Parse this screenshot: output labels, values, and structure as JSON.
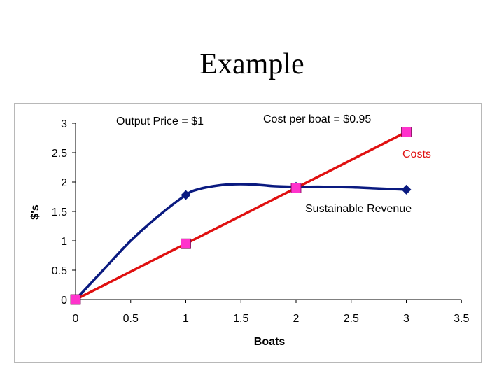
{
  "slide": {
    "title": "Example"
  },
  "chart_data": {
    "type": "line",
    "xlabel": "Boats",
    "ylabel": "$'s",
    "xlim": [
      0,
      3.5
    ],
    "ylim": [
      0,
      3
    ],
    "x_ticks": [
      "0",
      "0.5",
      "1",
      "1.5",
      "2",
      "2.5",
      "3",
      "3.5"
    ],
    "y_ticks": [
      "0",
      "0.5",
      "1",
      "1.5",
      "2",
      "2.5",
      "3"
    ],
    "grid": false,
    "legend": "none",
    "series": [
      {
        "name": "Sustainable Revenue",
        "color": "#0a1a80",
        "marker": "diamond",
        "curve_x": [
          0,
          0.25,
          0.5,
          0.75,
          1.0,
          1.1,
          1.25,
          1.4,
          1.6,
          1.8,
          2.0,
          2.25,
          2.5,
          2.75,
          3.0
        ],
        "curve_y": [
          0,
          0.5,
          1.0,
          1.42,
          1.78,
          1.87,
          1.93,
          1.96,
          1.96,
          1.93,
          1.92,
          1.92,
          1.91,
          1.89,
          1.87
        ],
        "points": [
          {
            "x": 0,
            "y": 0
          },
          {
            "x": 1,
            "y": 1.78
          },
          {
            "x": 2,
            "y": 1.92
          },
          {
            "x": 3,
            "y": 1.87
          }
        ]
      },
      {
        "name": "Costs",
        "color": "#e01010",
        "marker": "square",
        "marker_fill": "#ff33cc",
        "points": [
          {
            "x": 0,
            "y": 0
          },
          {
            "x": 1,
            "y": 0.95
          },
          {
            "x": 2,
            "y": 1.9
          },
          {
            "x": 3,
            "y": 2.85
          }
        ]
      }
    ],
    "annotations": {
      "output_price": "Output Price = $1",
      "cost_per_boat": "Cost per boat = $0.95",
      "costs_label": "Costs",
      "revenue_label": "Sustainable Revenue"
    },
    "colors": {
      "revenue_line": "#0a1a80",
      "cost_line": "#e01010",
      "cost_marker": "#ff33cc",
      "costs_text": "#e01010"
    }
  }
}
